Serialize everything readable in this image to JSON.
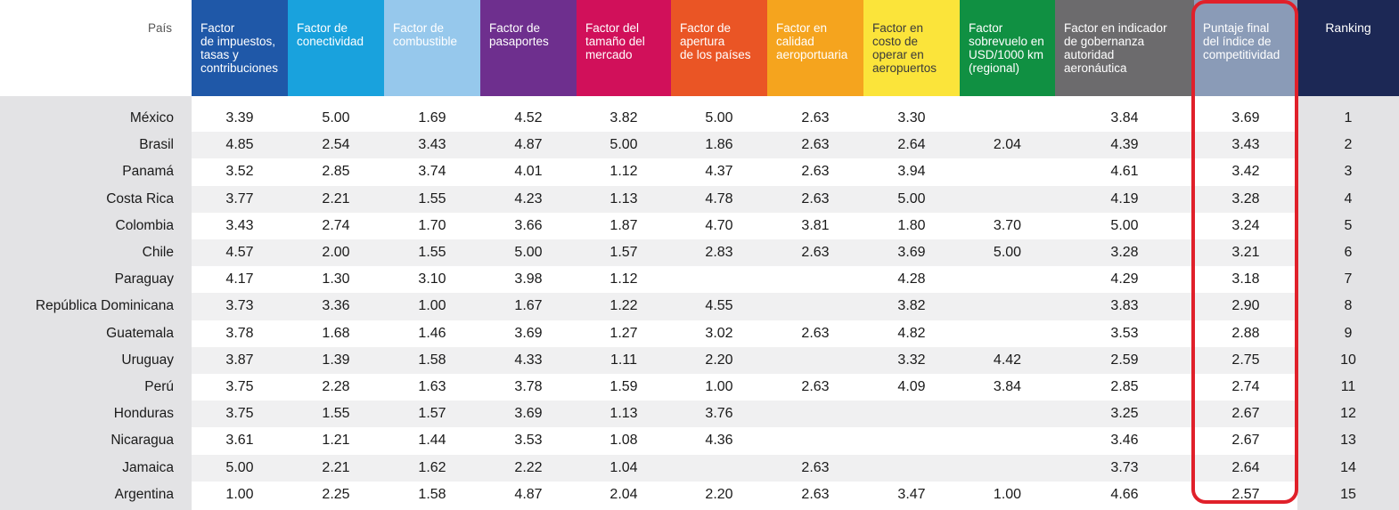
{
  "columns": [
    {
      "key": "country",
      "label": "País",
      "color": "#ffffff"
    },
    {
      "key": "impuestos",
      "label": "Factor\nde impuestos,\ntasas y\ncontribuciones",
      "color": "#1f58a8"
    },
    {
      "key": "conectividad",
      "label": "Factor de\nconectividad",
      "color": "#19a2dd"
    },
    {
      "key": "combustible",
      "label": "Factor de\ncombustible",
      "color": "#96c8ec"
    },
    {
      "key": "pasaportes",
      "label": "Factor de\npasaportes",
      "color": "#6e2f8e"
    },
    {
      "key": "mercado",
      "label": "Factor del\ntamaño del\nmercado",
      "color": "#d1105a"
    },
    {
      "key": "apertura",
      "label": "Factor de\napertura\nde los países",
      "color": "#ea5525"
    },
    {
      "key": "calidad",
      "label": "Factor en\ncalidad\naeroportuaria",
      "color": "#f5a41e"
    },
    {
      "key": "costo",
      "label": "Factor en\ncosto de\noperar en\naeropuertos",
      "color": "#fbe43a"
    },
    {
      "key": "sobrevuelo",
      "label": "Factor\nsobrevuelo en\nUSD/1000 km\n(regional)",
      "color": "#109042"
    },
    {
      "key": "gobernanza",
      "label": "Factor en indicador\nde gobernanza\nautoridad\naeronáutica",
      "color": "#6c6b6d"
    },
    {
      "key": "puntaje",
      "label": "Puntaje final\ndel índice de\ncompetitividad",
      "color": "#8a9bb7"
    },
    {
      "key": "ranking",
      "label": "Ranking",
      "color": "#1c2855"
    }
  ],
  "rows": [
    {
      "country": "México",
      "impuestos": "3.39",
      "conectividad": "5.00",
      "combustible": "1.69",
      "pasaportes": "4.52",
      "mercado": "3.82",
      "apertura": "5.00",
      "calidad": "2.63",
      "costo": "3.30",
      "sobrevuelo": "",
      "gobernanza": "3.84",
      "puntaje": "3.69",
      "ranking": "1"
    },
    {
      "country": "Brasil",
      "impuestos": "4.85",
      "conectividad": "2.54",
      "combustible": "3.43",
      "pasaportes": "4.87",
      "mercado": "5.00",
      "apertura": "1.86",
      "calidad": "2.63",
      "costo": "2.64",
      "sobrevuelo": "2.04",
      "gobernanza": "4.39",
      "puntaje": "3.43",
      "ranking": "2"
    },
    {
      "country": "Panamá",
      "impuestos": "3.52",
      "conectividad": "2.85",
      "combustible": "3.74",
      "pasaportes": "4.01",
      "mercado": "1.12",
      "apertura": "4.37",
      "calidad": "2.63",
      "costo": "3.94",
      "sobrevuelo": "",
      "gobernanza": "4.61",
      "puntaje": "3.42",
      "ranking": "3"
    },
    {
      "country": "Costa Rica",
      "impuestos": "3.77",
      "conectividad": "2.21",
      "combustible": "1.55",
      "pasaportes": "4.23",
      "mercado": "1.13",
      "apertura": "4.78",
      "calidad": "2.63",
      "costo": "5.00",
      "sobrevuelo": "",
      "gobernanza": "4.19",
      "puntaje": "3.28",
      "ranking": "4"
    },
    {
      "country": "Colombia",
      "impuestos": "3.43",
      "conectividad": "2.74",
      "combustible": "1.70",
      "pasaportes": "3.66",
      "mercado": "1.87",
      "apertura": "4.70",
      "calidad": "3.81",
      "costo": "1.80",
      "sobrevuelo": "3.70",
      "gobernanza": "5.00",
      "puntaje": "3.24",
      "ranking": "5"
    },
    {
      "country": "Chile",
      "impuestos": "4.57",
      "conectividad": "2.00",
      "combustible": "1.55",
      "pasaportes": "5.00",
      "mercado": "1.57",
      "apertura": "2.83",
      "calidad": "2.63",
      "costo": "3.69",
      "sobrevuelo": "5.00",
      "gobernanza": "3.28",
      "puntaje": "3.21",
      "ranking": "6"
    },
    {
      "country": "Paraguay",
      "impuestos": "4.17",
      "conectividad": "1.30",
      "combustible": "3.10",
      "pasaportes": "3.98",
      "mercado": "1.12",
      "apertura": "",
      "calidad": "",
      "costo": "4.28",
      "sobrevuelo": "",
      "gobernanza": "4.29",
      "puntaje": "3.18",
      "ranking": "7"
    },
    {
      "country": "República Dominicana",
      "impuestos": "3.73",
      "conectividad": "3.36",
      "combustible": "1.00",
      "pasaportes": "1.67",
      "mercado": "1.22",
      "apertura": "4.55",
      "calidad": "",
      "costo": "3.82",
      "sobrevuelo": "",
      "gobernanza": "3.83",
      "puntaje": "2.90",
      "ranking": "8"
    },
    {
      "country": "Guatemala",
      "impuestos": "3.78",
      "conectividad": "1.68",
      "combustible": "1.46",
      "pasaportes": "3.69",
      "mercado": "1.27",
      "apertura": "3.02",
      "calidad": "2.63",
      "costo": "4.82",
      "sobrevuelo": "",
      "gobernanza": "3.53",
      "puntaje": "2.88",
      "ranking": "9"
    },
    {
      "country": "Uruguay",
      "impuestos": "3.87",
      "conectividad": "1.39",
      "combustible": "1.58",
      "pasaportes": "4.33",
      "mercado": "1.11",
      "apertura": "2.20",
      "calidad": "",
      "costo": "3.32",
      "sobrevuelo": "4.42",
      "gobernanza": "2.59",
      "puntaje": "2.75",
      "ranking": "10"
    },
    {
      "country": "Perú",
      "impuestos": "3.75",
      "conectividad": "2.28",
      "combustible": "1.63",
      "pasaportes": "3.78",
      "mercado": "1.59",
      "apertura": "1.00",
      "calidad": "2.63",
      "costo": "4.09",
      "sobrevuelo": "3.84",
      "gobernanza": "2.85",
      "puntaje": "2.74",
      "ranking": "11"
    },
    {
      "country": "Honduras",
      "impuestos": "3.75",
      "conectividad": "1.55",
      "combustible": "1.57",
      "pasaportes": "3.69",
      "mercado": "1.13",
      "apertura": "3.76",
      "calidad": "",
      "costo": "",
      "sobrevuelo": "",
      "gobernanza": "3.25",
      "puntaje": "2.67",
      "ranking": "12"
    },
    {
      "country": "Nicaragua",
      "impuestos": "3.61",
      "conectividad": "1.21",
      "combustible": "1.44",
      "pasaportes": "3.53",
      "mercado": "1.08",
      "apertura": "4.36",
      "calidad": "",
      "costo": "",
      "sobrevuelo": "",
      "gobernanza": "3.46",
      "puntaje": "2.67",
      "ranking": "13"
    },
    {
      "country": "Jamaica",
      "impuestos": "5.00",
      "conectividad": "2.21",
      "combustible": "1.62",
      "pasaportes": "2.22",
      "mercado": "1.04",
      "apertura": "",
      "calidad": "2.63",
      "costo": "",
      "sobrevuelo": "",
      "gobernanza": "3.73",
      "puntaje": "2.64",
      "ranking": "14"
    },
    {
      "country": "Argentina",
      "impuestos": "1.00",
      "conectividad": "2.25",
      "combustible": "1.58",
      "pasaportes": "4.87",
      "mercado": "2.04",
      "apertura": "2.20",
      "calidad": "2.63",
      "costo": "3.47",
      "sobrevuelo": "1.00",
      "gobernanza": "4.66",
      "puntaje": "2.57",
      "ranking": "15"
    }
  ],
  "highlight_color": "#e0202a"
}
